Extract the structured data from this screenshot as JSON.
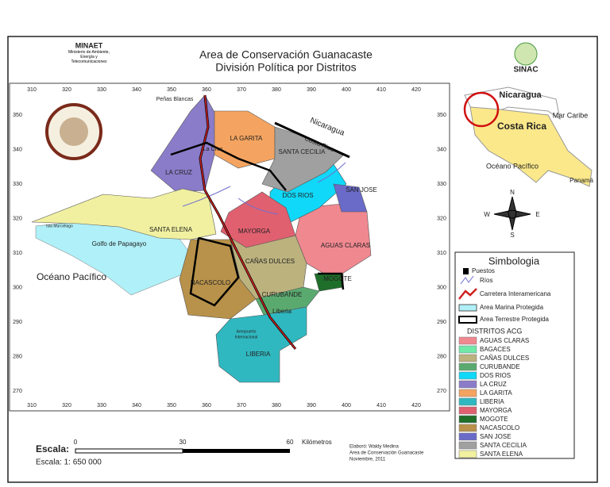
{
  "header": {
    "title": "Area de Conservación Guanacaste",
    "subtitle": "División Política por Distritos"
  },
  "logos": {
    "left": {
      "name": "MINAET",
      "text": "Ministerio de Ambiente, Energía y Telecomunicaciones"
    },
    "right": {
      "name": "SINAC"
    }
  },
  "grid": {
    "eastings": [
      310,
      320,
      330,
      340,
      350,
      360,
      370,
      380,
      390,
      400,
      410,
      420
    ],
    "northings": [
      350,
      340,
      330,
      320,
      310,
      300,
      290,
      280,
      270
    ]
  },
  "places": [
    "Peñas Blancas",
    "La Cruz",
    "Nicaragua",
    "Costa Rica",
    "Isla Murciélago",
    "Golfo de Papagayo",
    "Océano Pacífico",
    "Liberia",
    "Aeropuerto",
    "Internacional"
  ],
  "inset": {
    "labels": [
      "Nicaragua",
      "Mar Caribe",
      "Costa Rica",
      "Océano Pacífico",
      "Panamá"
    ]
  },
  "compass": [
    "N",
    "E",
    "S",
    "W"
  ],
  "legend": {
    "title": "Simbologia",
    "symbols": [
      {
        "label": "Puestos"
      },
      {
        "label": "Ríos",
        "color": "#7070d0"
      },
      {
        "label": "Carretera Interamericana",
        "color": "#d02020"
      },
      {
        "label": "Area Marina Protegida",
        "color": "#b0f0f8"
      },
      {
        "label": "Area Terrestre Protegida",
        "color": "#000000"
      }
    ],
    "districts_title": "DISTRITOS ACG",
    "districts": [
      {
        "name": "AGUAS CLARAS",
        "color": "#f08890"
      },
      {
        "name": "BAGACES",
        "color": "#70e8a8"
      },
      {
        "name": "CAÑAS DULCES",
        "color": "#bcb27e"
      },
      {
        "name": "CURUBANDE",
        "color": "#5aaa70"
      },
      {
        "name": "DOS RIOS",
        "color": "#10d8f8"
      },
      {
        "name": "LA CRUZ",
        "color": "#8a7cc8"
      },
      {
        "name": "LA GARITA",
        "color": "#f4a460"
      },
      {
        "name": "LIBERIA",
        "color": "#30b8c0"
      },
      {
        "name": "MAYORGA",
        "color": "#e06070"
      },
      {
        "name": "MOGOTE",
        "color": "#1f6e2a"
      },
      {
        "name": "NACASCOLO",
        "color": "#b8924a"
      },
      {
        "name": "SAN JOSE",
        "color": "#6a6ac8"
      },
      {
        "name": "SANTA CECILIA",
        "color": "#a0a0a0"
      },
      {
        "name": "SANTA ELENA",
        "color": "#f0f0a0"
      }
    ]
  },
  "scale": {
    "label": "Escala:",
    "ticks": [
      0,
      30,
      60
    ],
    "unit": "Kilómetros",
    "ratio": "Escala: 1: 650 000"
  },
  "credits": [
    "Elaboró: Waldy Medina",
    "Area de Conservación Guanacaste",
    "Noviembre, 2011"
  ]
}
